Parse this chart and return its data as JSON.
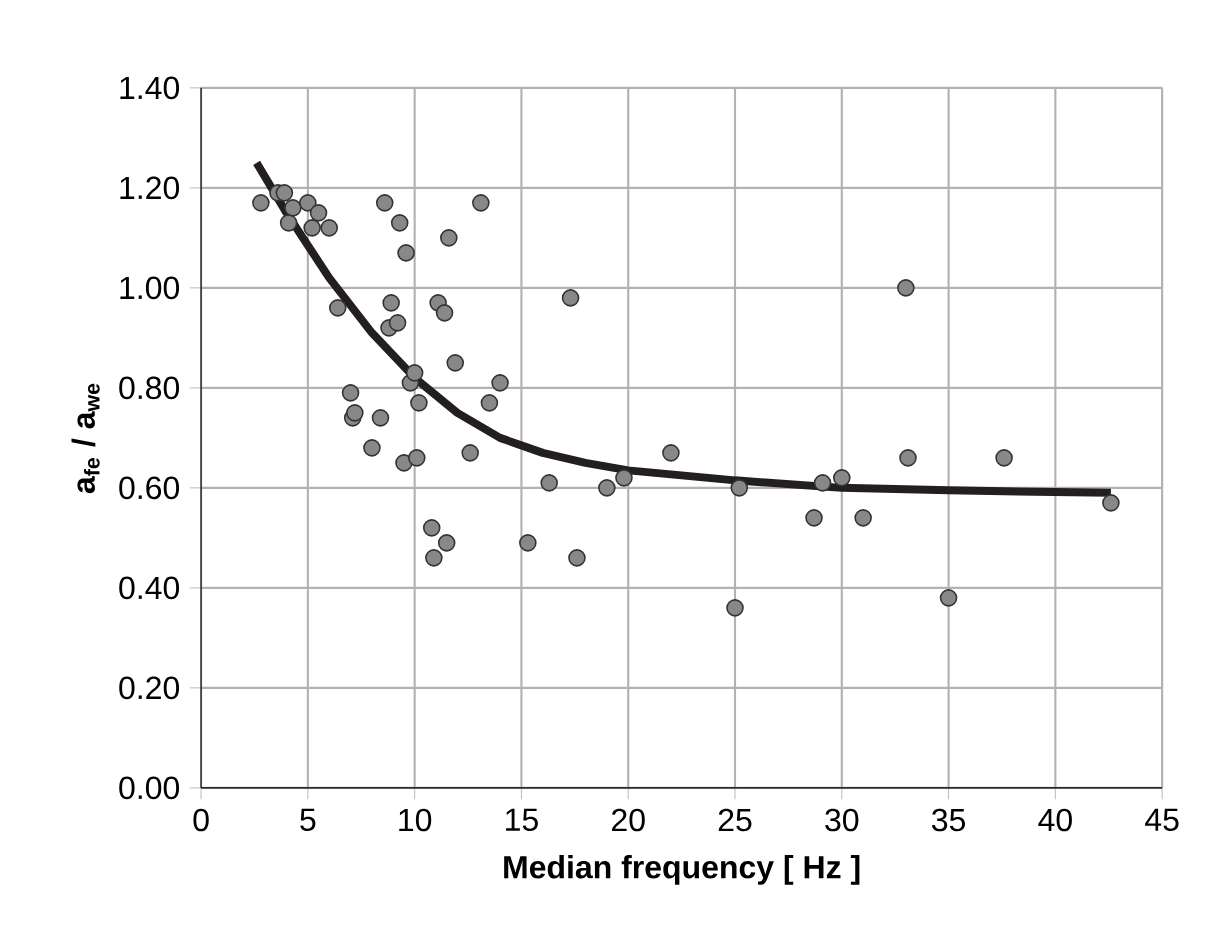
{
  "chart_data": {
    "type": "scatter",
    "xlabel": "Median frequency [ Hz ]",
    "ylabel": "a$_{fe}$ / a$_{we}$",
    "xlim": [
      0,
      45
    ],
    "xticks": [
      0,
      5,
      10,
      15,
      20,
      25,
      30,
      35,
      40,
      45
    ],
    "ylim": [
      0,
      1.4
    ],
    "yticks": [
      {
        "value": 0,
        "label": "0.00"
      },
      {
        "value": 0.2,
        "label": "0.20"
      },
      {
        "value": 0.4,
        "label": "0.40"
      },
      {
        "value": 0.6,
        "label": "0.60"
      },
      {
        "value": 0.8,
        "label": "0.80"
      },
      {
        "value": 1.0,
        "label": "1.00"
      },
      {
        "value": 1.2,
        "label": "1.20"
      },
      {
        "value": 1.4,
        "label": "1.40"
      }
    ],
    "grid": true,
    "series": [
      {
        "marker": "circle",
        "color": "#888888",
        "x": [
          2.8,
          3.6,
          3.9,
          4.1,
          4.3,
          5.0,
          5.2,
          5.5,
          6.0,
          6.4,
          7.0,
          7.1,
          7.2,
          8.0,
          8.4,
          8.6,
          8.8,
          8.9,
          9.2,
          9.3,
          9.5,
          9.6,
          9.8,
          10.0,
          10.1,
          10.2,
          10.8,
          10.9,
          11.1,
          11.4,
          11.5,
          11.6,
          11.9,
          12.6,
          13.1,
          13.5,
          14.0,
          15.3,
          16.3,
          17.3,
          17.6,
          19.0,
          19.8,
          22.0,
          25.0,
          25.2,
          28.7,
          29.1,
          30.0,
          31.0,
          33.0,
          33.1,
          35.0,
          37.6,
          42.6
        ],
        "values": [
          1.17,
          1.19,
          1.19,
          1.13,
          1.16,
          1.17,
          1.12,
          1.15,
          1.12,
          0.96,
          0.79,
          0.74,
          0.75,
          0.68,
          0.74,
          1.17,
          0.92,
          0.97,
          0.93,
          1.13,
          0.65,
          1.07,
          0.81,
          0.83,
          0.66,
          0.77,
          0.52,
          0.46,
          0.97,
          0.95,
          0.49,
          1.1,
          0.85,
          0.67,
          1.17,
          0.77,
          0.81,
          0.49,
          0.61,
          0.98,
          0.46,
          0.6,
          0.62,
          0.67,
          0.36,
          0.6,
          0.54,
          0.61,
          0.62,
          0.54,
          1.0,
          0.66,
          0.38,
          0.66,
          0.57
        ]
      },
      {
        "type": "line",
        "marker": "none",
        "line_style": "solid",
        "color": "#231f20",
        "x": [
          2.6,
          4,
          6,
          8,
          10,
          12,
          14,
          16,
          18,
          20,
          25,
          30,
          35,
          42.6
        ],
        "values": [
          1.25,
          1.15,
          1.02,
          0.91,
          0.82,
          0.75,
          0.7,
          0.67,
          0.65,
          0.635,
          0.615,
          0.6,
          0.595,
          0.59
        ]
      }
    ]
  }
}
